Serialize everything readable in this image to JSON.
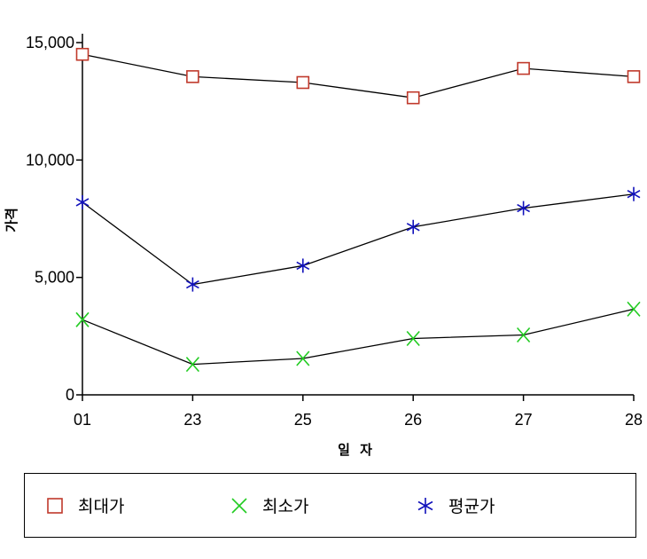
{
  "chart_data": {
    "type": "line",
    "categories": [
      "01",
      "23",
      "25",
      "26",
      "27",
      "28"
    ],
    "series": [
      {
        "name": "최대가",
        "color": "#c0392b",
        "marker": "square",
        "values": [
          14500,
          13550,
          13300,
          12650,
          13900,
          13550
        ]
      },
      {
        "name": "최소가",
        "color": "#22cc22",
        "marker": "x",
        "values": [
          3200,
          1300,
          1550,
          2400,
          2550,
          3650
        ]
      },
      {
        "name": "평균가",
        "color": "#1111bb",
        "marker": "asterisk",
        "values": [
          8200,
          4700,
          5500,
          7150,
          7950,
          8550
        ]
      }
    ],
    "yticks": [
      0,
      5000,
      10000,
      15000
    ],
    "ytick_labels": [
      "0",
      "5,000",
      "10,000",
      "15,000"
    ],
    "ylim": [
      0,
      15000
    ],
    "xlabel": "일 자",
    "ylabel": "가격",
    "legend_position": "bottom",
    "grid": false,
    "line_color": "#000000"
  }
}
